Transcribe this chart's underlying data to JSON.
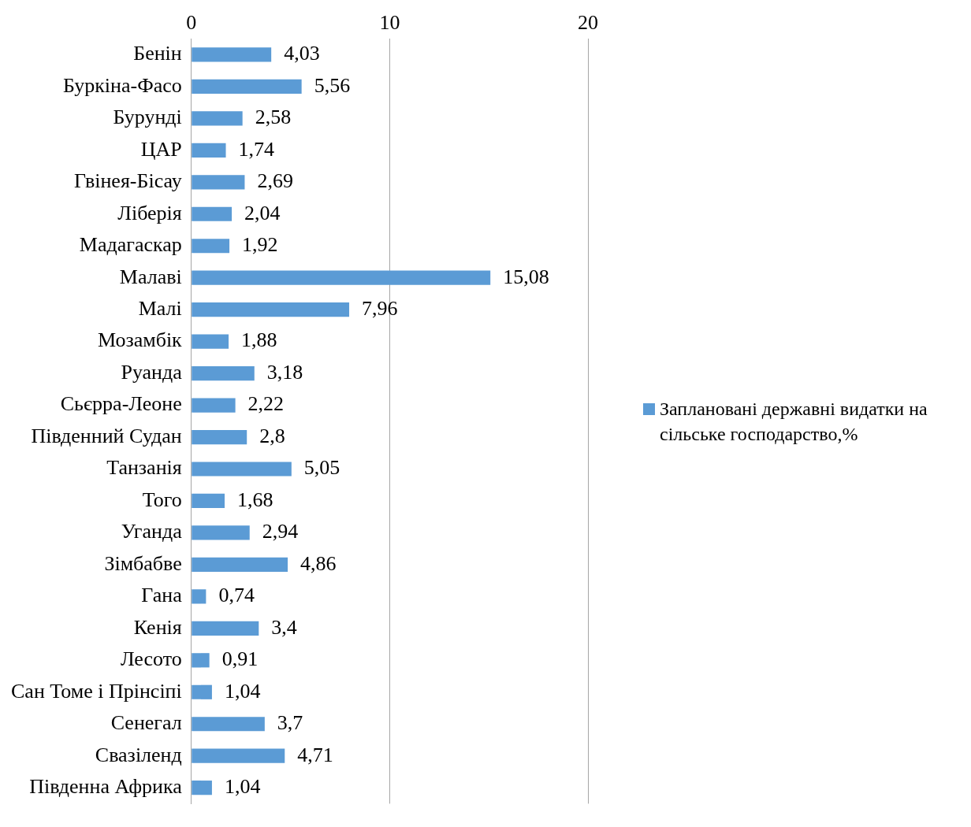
{
  "chart_data": {
    "type": "bar",
    "orientation": "horizontal",
    "categories": [
      "Бенін",
      "Буркіна-Фасо",
      "Бурунді",
      "ЦАР",
      "Гвінея-Бісау",
      "Ліберія",
      "Мадагаскар",
      "Малаві",
      "Малі",
      "Мозамбік",
      "Руанда",
      "Сьєрра-Леоне",
      "Південний Судан",
      "Танзанія",
      "Того",
      "Уганда",
      "Зімбабве",
      "Гана",
      "Кенія",
      "Лесото",
      "Сан Томе і Прінсіпі",
      "Сенегал",
      "Свазіленд",
      "Південна Африка"
    ],
    "series": [
      {
        "name": "Заплановані державні видатки на сільське господарство,%",
        "color": "#5b9bd5",
        "values": [
          4.03,
          5.56,
          2.58,
          1.74,
          2.69,
          2.04,
          1.92,
          15.08,
          7.96,
          1.88,
          3.18,
          2.22,
          2.8,
          5.05,
          1.68,
          2.94,
          4.86,
          0.74,
          3.4,
          0.91,
          1.04,
          3.7,
          4.71,
          1.04
        ],
        "value_labels": [
          "4,03",
          "5,56",
          "2,58",
          "1,74",
          "2,69",
          "2,04",
          "1,92",
          "15,08",
          "7,96",
          "1,88",
          "3,18",
          "2,22",
          "2,8",
          "5,05",
          "1,68",
          "2,94",
          "4,86",
          "0,74",
          "3,4",
          "0,91",
          "1,04",
          "3,7",
          "4,71",
          "1,04"
        ]
      }
    ],
    "xlim": [
      0,
      20
    ],
    "xticks": [
      0,
      10,
      20
    ],
    "grid": "x",
    "legend": "right"
  }
}
